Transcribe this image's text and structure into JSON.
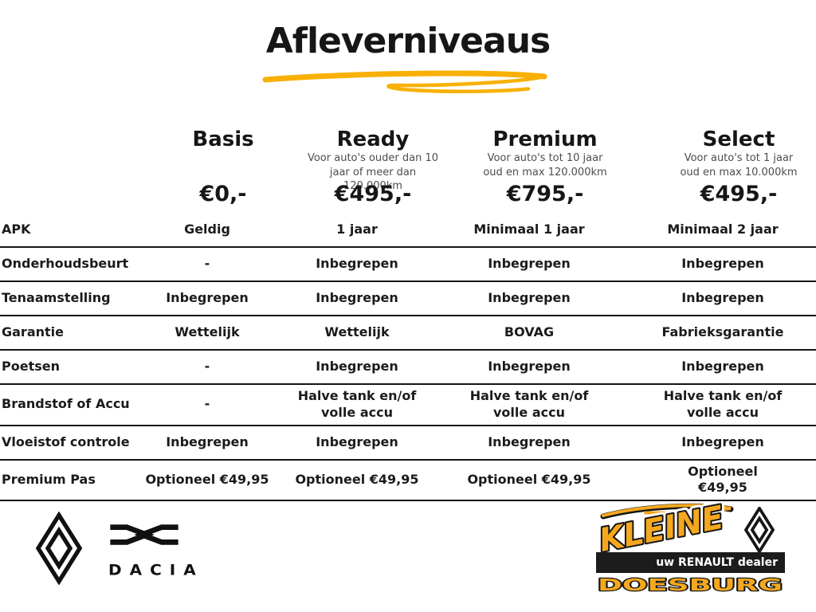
{
  "title": "Afleverniveaus",
  "plans": [
    {
      "name": "Basis",
      "subtitle": "",
      "price": "€0,-"
    },
    {
      "name": "Ready",
      "subtitle": "Voor auto's ouder dan 10\njaar of meer dan 120.000km",
      "price": "€495,-"
    },
    {
      "name": "Premium",
      "subtitle": "Voor auto's tot 10 jaar\noud en max 120.000km",
      "price": "€795,-"
    },
    {
      "name": "Select",
      "subtitle": "Voor auto's tot 1 jaar\noud en max 10.000km",
      "price": "€495,-"
    }
  ],
  "rows": [
    {
      "label": "APK",
      "values": [
        "Geldig",
        "1 jaar",
        "Minimaal 1 jaar",
        "Minimaal 2 jaar"
      ]
    },
    {
      "label": "Onderhoudsbeurt",
      "values": [
        "-",
        "Inbegrepen",
        "Inbegrepen",
        "Inbegrepen"
      ]
    },
    {
      "label": "Tenaamstelling",
      "values": [
        "Inbegrepen",
        "Inbegrepen",
        "Inbegrepen",
        "Inbegrepen"
      ]
    },
    {
      "label": "Garantie",
      "values": [
        "Wettelijk",
        "Wettelijk",
        "BOVAG",
        "Fabrieksgarantie"
      ]
    },
    {
      "label": "Poetsen",
      "values": [
        "-",
        "Inbegrepen",
        "Inbegrepen",
        "Inbegrepen"
      ]
    },
    {
      "label": "Brandstof of Accu",
      "values": [
        "-",
        "Halve tank en/of\nvolle accu",
        "Halve tank en/of\nvolle accu",
        "Halve tank en/of\nvolle accu"
      ]
    },
    {
      "label": "Vloeistof controle",
      "values": [
        "Inbegrepen",
        "Inbegrepen",
        "Inbegrepen",
        "Inbegrepen"
      ]
    },
    {
      "label": "Premium Pas",
      "values": [
        "Optioneel €49,95",
        "Optioneel €49,95",
        "Optioneel €49,95",
        "Optioneel €49,95"
      ]
    }
  ],
  "footer": {
    "dacia_wordmark": "DACIA",
    "dealer_name": "KLEINE",
    "dealer_tagline": "uw RENAULT dealer",
    "dealer_city": "DOESBURG"
  },
  "icons": {
    "renault_logo": "renault-diamond",
    "dacia_logo": "dacia-link-emblem",
    "title_underline": "yellow-marker-swoosh"
  },
  "colors": {
    "accent_yellow": "#F9B005",
    "logo_yellow": "#F5A81E",
    "text_black": "#161616",
    "subtitle_gray": "#4D4D52",
    "bar_black": "#1C1C1C"
  }
}
